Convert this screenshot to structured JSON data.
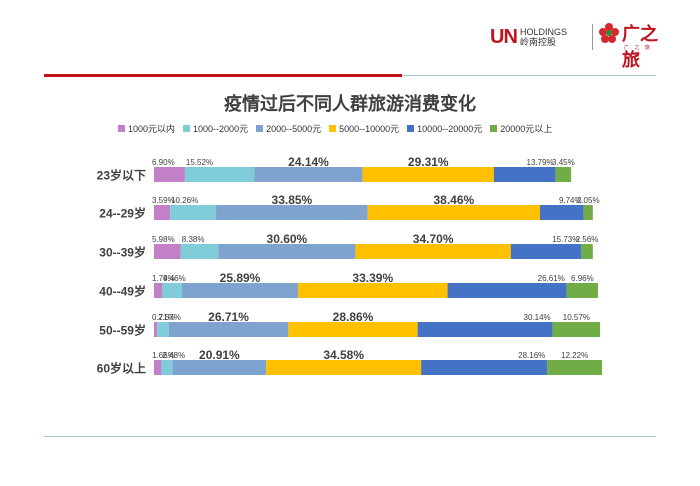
{
  "branding": {
    "logo_un": "UN",
    "logo_holdings": "HOLDINGS",
    "logo_holdings_cn": "岭南控股",
    "logo_guangzhilv": "广之旅",
    "logo_guangzhilv_sub": "广 之 旅 之 旅"
  },
  "colors": {
    "accent_red": "#c0131c",
    "rule_teal": "#9fc9cf"
  },
  "chart_data": {
    "type": "bar",
    "orientation": "horizontal-stacked",
    "title": "疫情过后不同人群旅游消费变化",
    "categories": [
      "23岁以下",
      "24--29岁",
      "30--39岁",
      "40--49岁",
      "50--59岁",
      "60岁以上"
    ],
    "series": [
      {
        "name": "1000元以内",
        "color": "#c280c8",
        "values": [
          6.9,
          3.59,
          5.98,
          1.79,
          0.71,
          1.66
        ],
        "labels": [
          "6.90%",
          "3.59%",
          "5.98%",
          "1.79%",
          "0.71%",
          "1.66%"
        ]
      },
      {
        "name": "1000--2000元",
        "color": "#80ccd8",
        "values": [
          15.52,
          10.26,
          8.38,
          4.46,
          2.57,
          2.48
        ],
        "labels": [
          "15.52%",
          "10.26%",
          "8.38%",
          "4.46%",
          "2.57%",
          "2.48%"
        ]
      },
      {
        "name": "2000--5000元",
        "color": "#7fa3cf",
        "values": [
          24.14,
          33.85,
          30.6,
          25.89,
          26.71,
          20.91
        ],
        "labels": [
          "24.14%",
          "33.85%",
          "30.60%",
          "25.89%",
          "26.71%",
          "20.91%"
        ]
      },
      {
        "name": "5000--10000元",
        "color": "#ffc000",
        "values": [
          29.31,
          38.46,
          34.7,
          33.39,
          28.86,
          34.58
        ],
        "labels": [
          "29.31%",
          "38.46%",
          "34.70%",
          "33.39%",
          "28.86%",
          "34.58%"
        ]
      },
      {
        "name": "10000--20000元",
        "color": "#4472c4",
        "values": [
          13.79,
          9.74,
          15.73,
          26.61,
          30.14,
          28.16
        ],
        "labels": [
          "13.79%",
          "9.74%",
          "15.73%",
          "26.61%",
          "30.14%",
          "28.16%"
        ]
      },
      {
        "name": "20000元以上",
        "color": "#70ad47",
        "values": [
          3.45,
          2.05,
          2.56,
          6.96,
          10.57,
          12.22
        ],
        "labels": [
          "3.45%",
          "2.05%",
          "2.56%",
          "6.96%",
          "10.57%",
          "12.22%"
        ]
      }
    ],
    "xlim": [
      0,
      100
    ],
    "grid": false,
    "legend_position": "top"
  }
}
